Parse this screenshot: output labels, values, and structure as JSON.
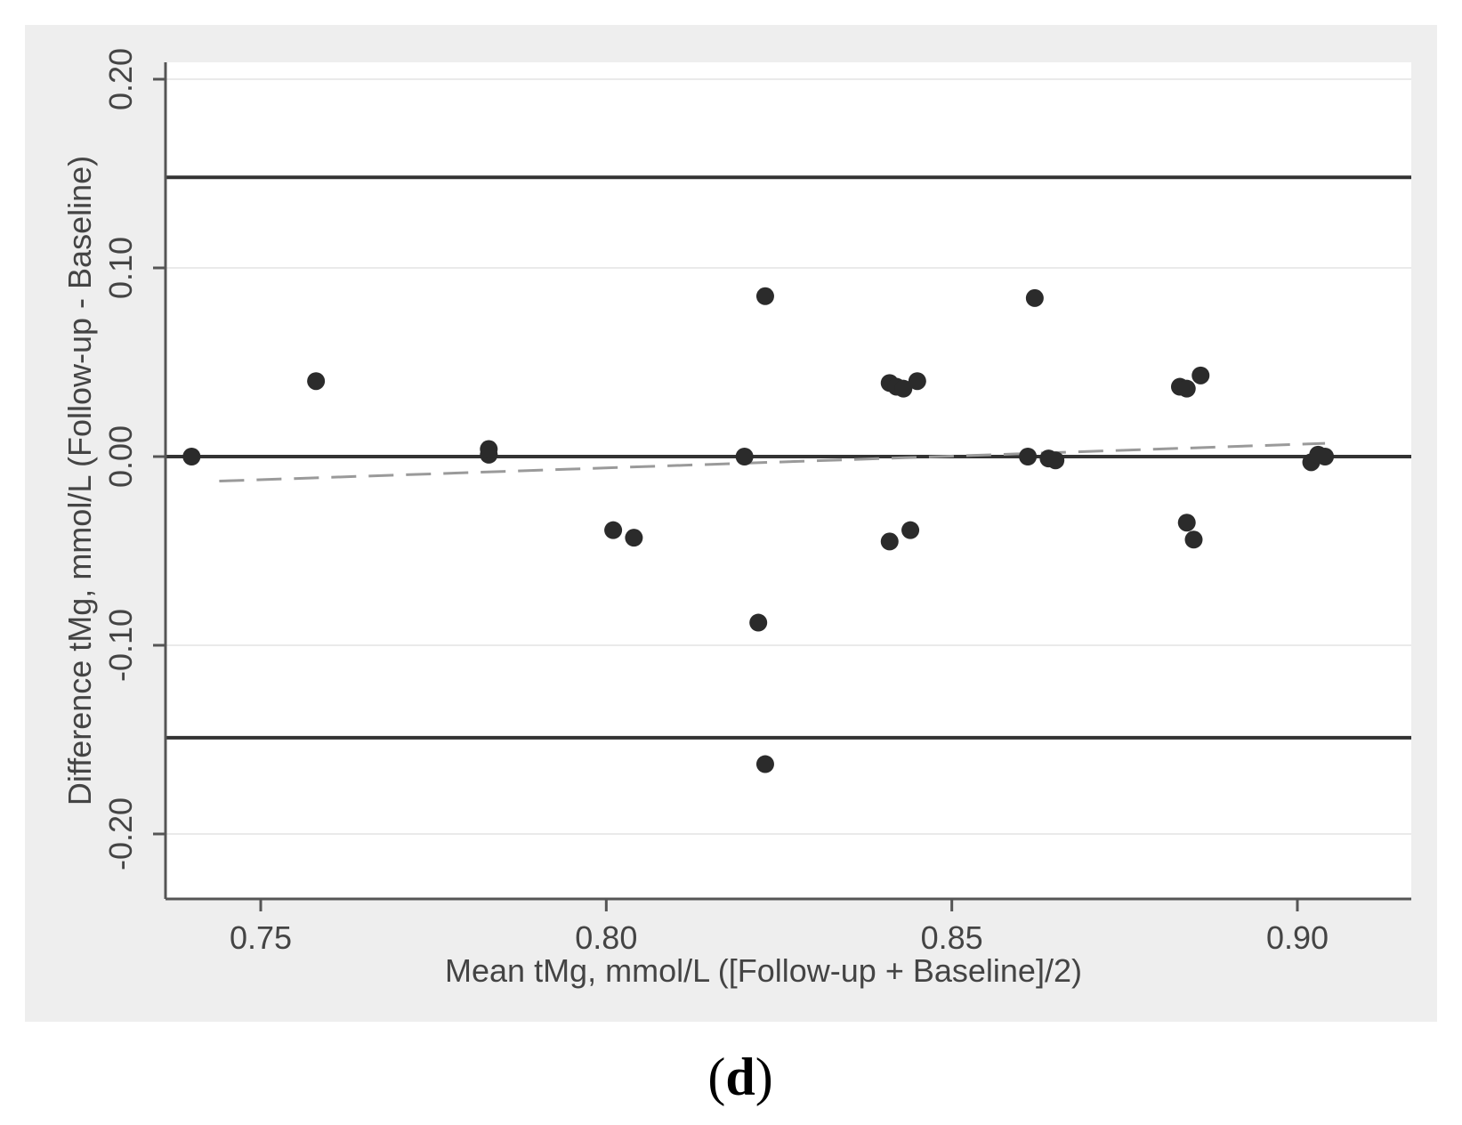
{
  "chart_data": {
    "type": "scatter",
    "xlabel": "Mean tMg, mmol/L ([Follow-up + Baseline]/2)",
    "ylabel": "Difference tMg, mmol/L (Follow-up - Baseline)",
    "xlim": [
      0.737,
      0.905
    ],
    "ylim": [
      -0.21,
      0.21
    ],
    "x_ticks": [
      0.75,
      0.8,
      0.85,
      0.9
    ],
    "x_tick_labels": [
      "0.75",
      "0.80",
      "0.85",
      "0.90"
    ],
    "y_ticks": [
      -0.2,
      -0.1,
      0.0,
      0.1,
      0.2
    ],
    "y_tick_labels": [
      "-0.20",
      "-0.10",
      "0.00",
      "0.10",
      "0.20"
    ],
    "grid": true,
    "panel_label": {
      "open": "(",
      "letter": "d",
      "close": ")"
    },
    "reference_lines": [
      {
        "kind": "upper_limit",
        "y": 0.148,
        "style": "solid"
      },
      {
        "kind": "zero_line",
        "y": 0.0,
        "style": "solid"
      },
      {
        "kind": "lower_limit",
        "y": -0.149,
        "style": "solid"
      }
    ],
    "trend_line": {
      "style": "dashed",
      "x": [
        0.744,
        0.904
      ],
      "y": [
        -0.013,
        0.007
      ]
    },
    "points": [
      {
        "x": 0.74,
        "y": 0.0
      },
      {
        "x": 0.758,
        "y": 0.04
      },
      {
        "x": 0.783,
        "y": 0.001
      },
      {
        "x": 0.783,
        "y": 0.004
      },
      {
        "x": 0.801,
        "y": -0.039
      },
      {
        "x": 0.804,
        "y": -0.043
      },
      {
        "x": 0.82,
        "y": 0.0
      },
      {
        "x": 0.822,
        "y": -0.088
      },
      {
        "x": 0.823,
        "y": 0.085
      },
      {
        "x": 0.823,
        "y": -0.163
      },
      {
        "x": 0.841,
        "y": -0.045
      },
      {
        "x": 0.841,
        "y": 0.039
      },
      {
        "x": 0.842,
        "y": 0.037
      },
      {
        "x": 0.843,
        "y": 0.036
      },
      {
        "x": 0.844,
        "y": -0.039
      },
      {
        "x": 0.845,
        "y": 0.04
      },
      {
        "x": 0.861,
        "y": 0.0
      },
      {
        "x": 0.862,
        "y": 0.084
      },
      {
        "x": 0.864,
        "y": -0.001
      },
      {
        "x": 0.865,
        "y": -0.002
      },
      {
        "x": 0.883,
        "y": 0.037
      },
      {
        "x": 0.884,
        "y": -0.035
      },
      {
        "x": 0.884,
        "y": 0.036
      },
      {
        "x": 0.885,
        "y": -0.044
      },
      {
        "x": 0.886,
        "y": 0.043
      },
      {
        "x": 0.902,
        "y": -0.003
      },
      {
        "x": 0.903,
        "y": 0.001
      },
      {
        "x": 0.904,
        "y": 0.0
      }
    ]
  }
}
